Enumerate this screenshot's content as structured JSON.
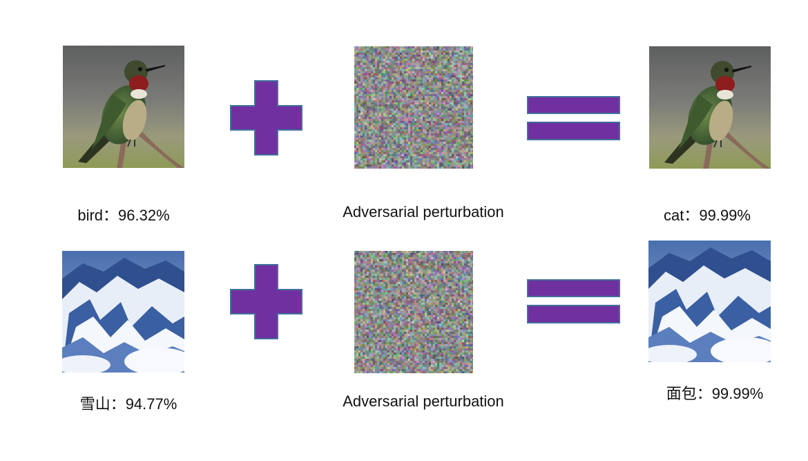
{
  "rows": [
    {
      "original_label": "bird：96.32%",
      "perturbation_label": "Adversarial perturbation",
      "result_label": "cat：99.99%"
    },
    {
      "original_label": "雪山：94.77%",
      "perturbation_label": "Adversarial perturbation",
      "result_label": "面包：99.99%"
    }
  ],
  "colors": {
    "operator_fill": "#7030A0",
    "operator_stroke": "#41719C"
  }
}
